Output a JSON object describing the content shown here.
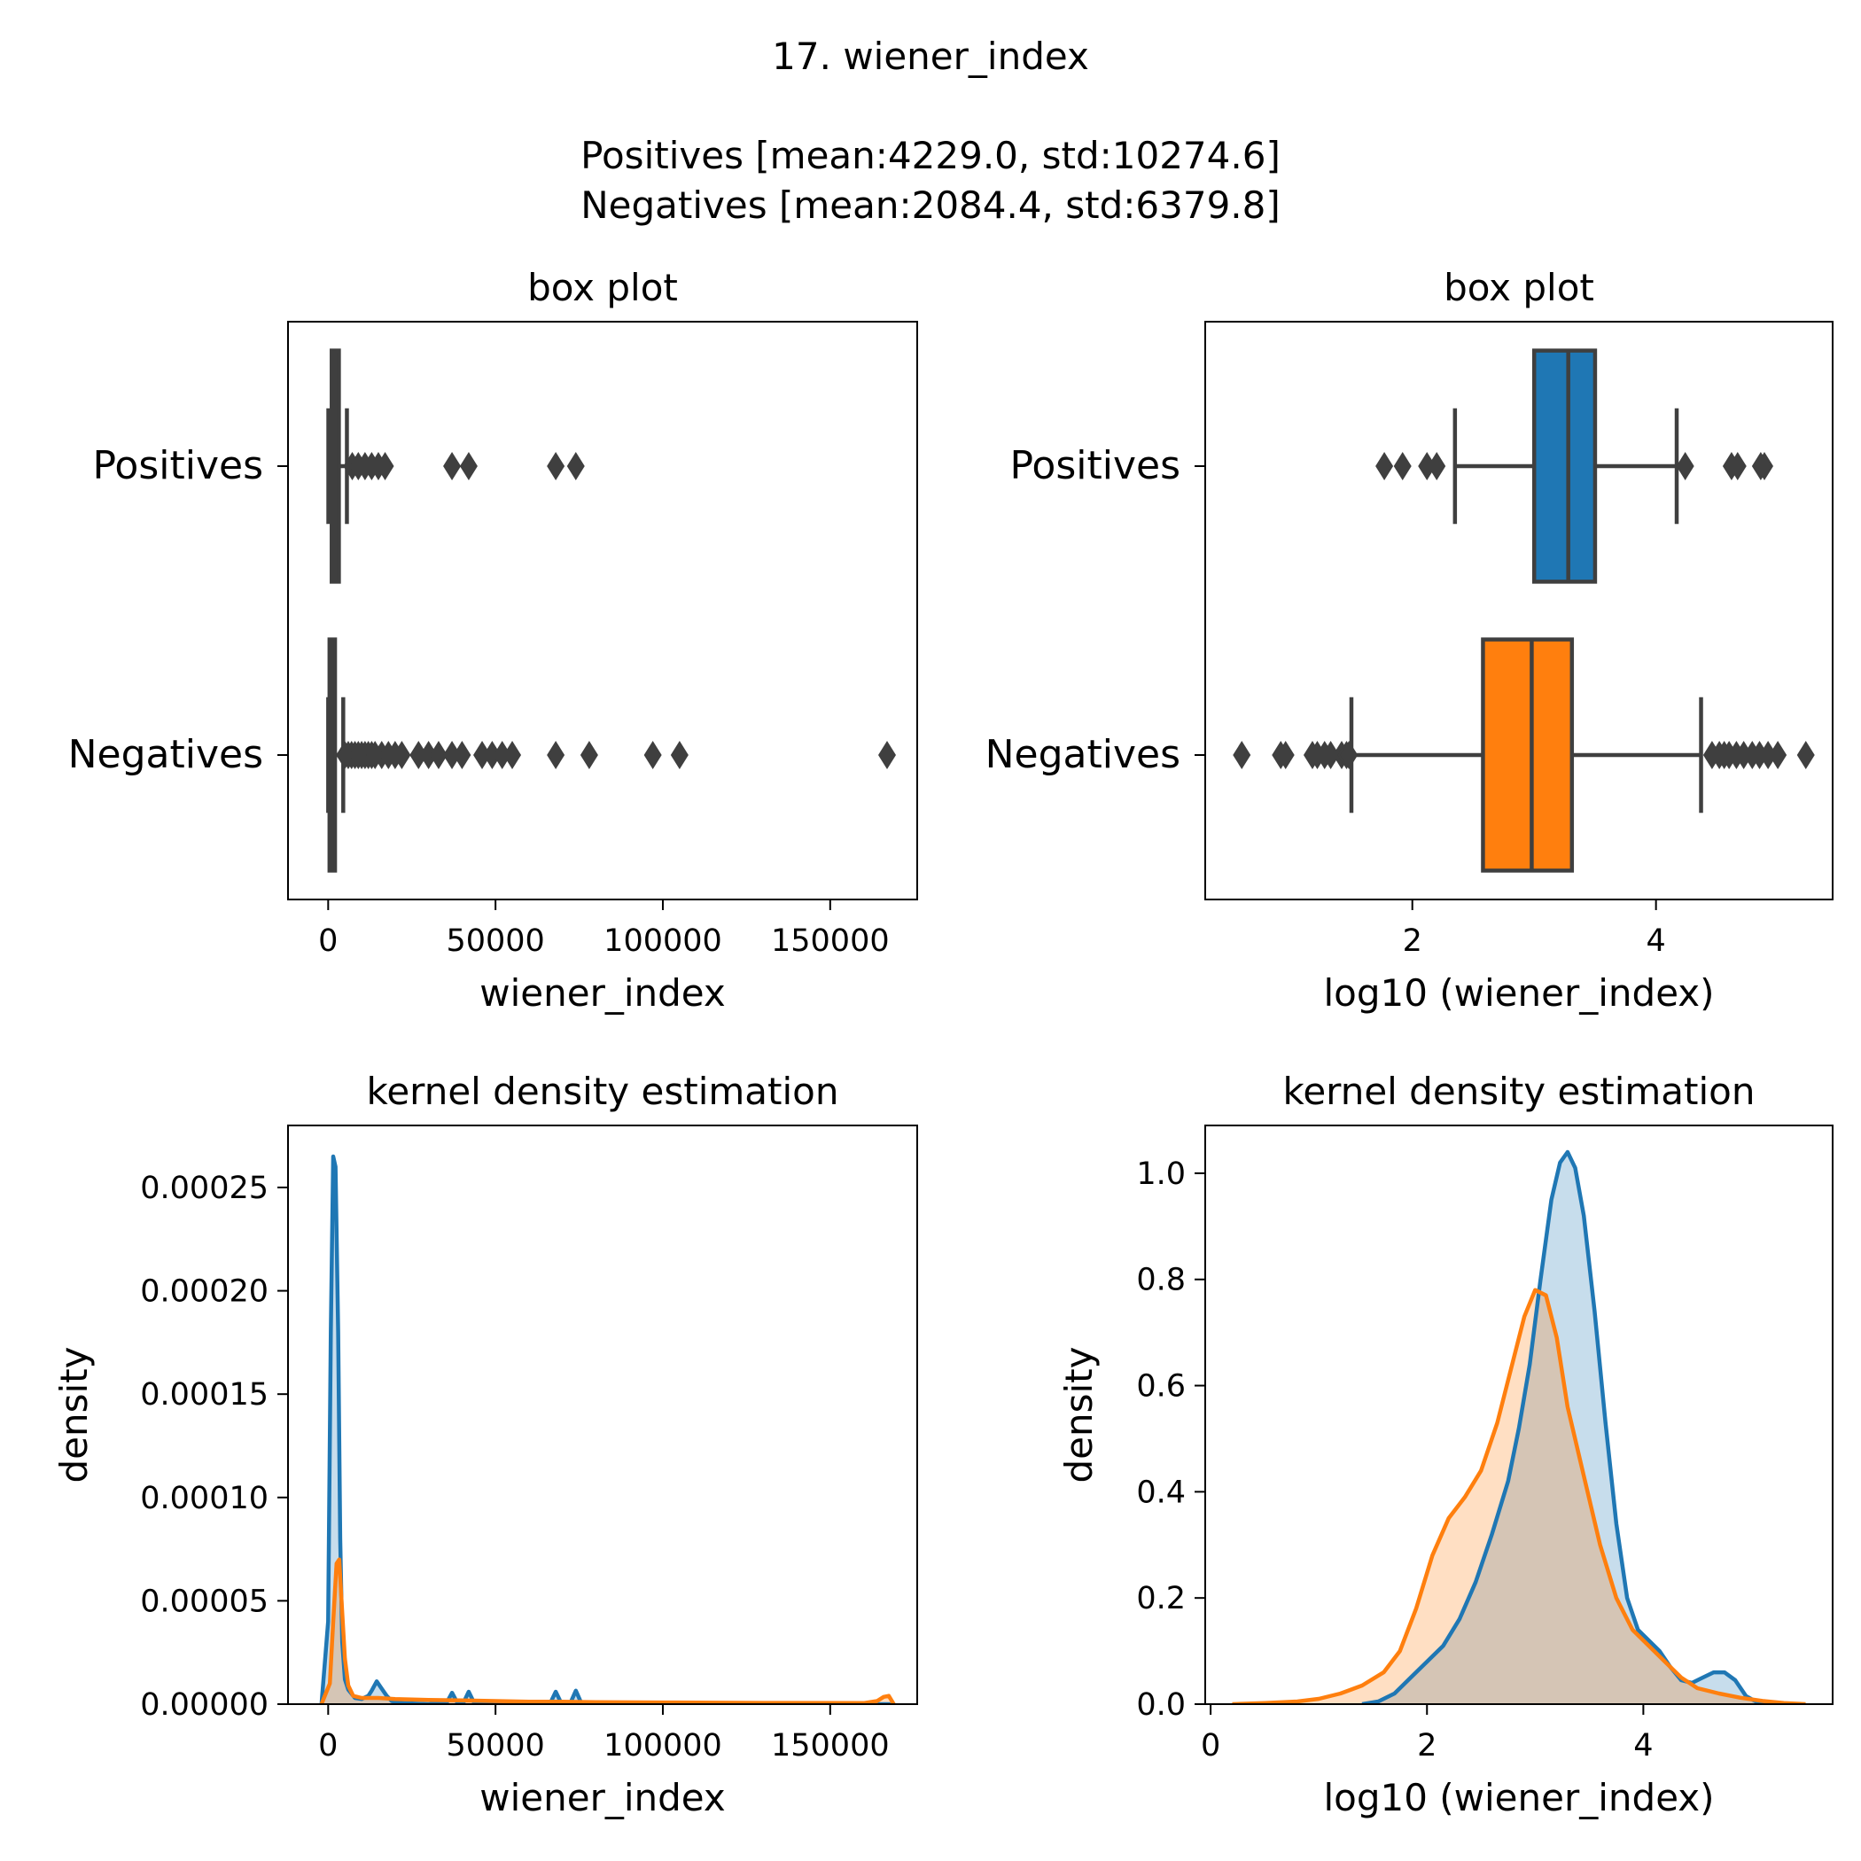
{
  "figure": {
    "title": "17.  wiener_index",
    "stats_positives": "Positives [mean:4229.0, std:10274.6]",
    "stats_negatives": "Negatives [mean:2084.4, std:6379.8]"
  },
  "colors": {
    "positives": "#1f77b4",
    "negatives": "#ff7f0e",
    "box_line": "#3f3f3f",
    "axis": "#000000"
  },
  "chart_data": [
    {
      "type": "box",
      "title": "box plot",
      "xlabel": "wiener_index",
      "ylabel": "",
      "xlim": [
        -12000,
        176000
      ],
      "xticks": [
        0,
        50000,
        100000,
        150000
      ],
      "xtick_labels": [
        "0",
        "50000",
        "100000",
        "150000"
      ],
      "categories": [
        "Positives",
        "Negatives"
      ],
      "series": [
        {
          "name": "Positives",
          "q1": 1050,
          "median": 1900,
          "q3": 3200,
          "whisker_low": 55,
          "whisker_high": 5600,
          "outliers": [
            7200,
            9000,
            11000,
            13000,
            15000,
            17000,
            37000,
            42000,
            68000,
            74000
          ]
        },
        {
          "name": "Negatives",
          "q1": 400,
          "median": 950,
          "q3": 2050,
          "whisker_low": 4,
          "whisker_high": 4500,
          "outliers": [
            5000,
            6000,
            7000,
            8000,
            9000,
            10000,
            11000,
            12000,
            13000,
            14000,
            16000,
            18000,
            20000,
            22000,
            27000,
            30000,
            33000,
            37000,
            40000,
            46000,
            49000,
            52000,
            55000,
            68000,
            78000,
            97000,
            105000,
            167000
          ]
        }
      ],
      "grid": false
    },
    {
      "type": "box",
      "title": "box plot",
      "xlabel": "log10 (wiener_index)",
      "ylabel": "",
      "xlim": [
        0.3,
        5.45
      ],
      "xticks": [
        2,
        4
      ],
      "xtick_labels": [
        "2",
        "4"
      ],
      "categories": [
        "Positives",
        "Negatives"
      ],
      "series": [
        {
          "name": "Positives",
          "q1": 3.0,
          "median": 3.28,
          "q3": 3.5,
          "whisker_low": 2.35,
          "whisker_high": 4.17,
          "outliers": [
            1.77,
            1.92,
            2.12,
            2.2,
            4.24,
            4.62,
            4.67,
            4.86,
            4.89
          ]
        },
        {
          "name": "Negatives",
          "q1": 2.58,
          "median": 2.98,
          "q3": 3.31,
          "whisker_low": 1.5,
          "whisker_high": 4.37,
          "outliers": [
            0.6,
            0.92,
            0.96,
            1.18,
            1.22,
            1.28,
            1.33,
            1.42,
            1.46,
            1.48,
            4.46,
            4.52,
            4.56,
            4.6,
            4.66,
            4.72,
            4.79,
            4.85,
            4.92,
            5.0,
            5.23
          ]
        }
      ],
      "grid": false
    },
    {
      "type": "area",
      "title": "kernel density estimation",
      "xlabel": "wiener_index",
      "ylabel": "density",
      "xlim": [
        -12000,
        176000
      ],
      "ylim": [
        0,
        0.00028
      ],
      "xticks": [
        0,
        50000,
        100000,
        150000
      ],
      "xtick_labels": [
        "0",
        "50000",
        "100000",
        "150000"
      ],
      "yticks": [
        0,
        5e-05,
        0.0001,
        0.00015,
        0.0002,
        0.00025
      ],
      "ytick_labels": [
        "0.00000",
        "0.00005",
        "0.00010",
        "0.00015",
        "0.00020",
        "0.00025"
      ],
      "series": [
        {
          "name": "Positives",
          "x": [
            -2000,
            0,
            800,
            1500,
            2200,
            3000,
            3600,
            4200,
            5000,
            6000,
            7000,
            8000,
            10000,
            12000,
            13000,
            14500,
            16000,
            17500,
            19000,
            22000,
            30000,
            35500,
            37000,
            38500,
            40500,
            42000,
            43500,
            46000,
            60000,
            66500,
            68000,
            69500,
            72500,
            74000,
            75500,
            80000,
            100000,
            140000,
            168000
          ],
          "y": [
            0,
            4e-05,
            0.00018,
            0.000265,
            0.00026,
            0.00018,
            8e-05,
            3e-05,
            1.2e-05,
            7e-06,
            5e-06,
            3e-06,
            2.5e-06,
            4e-06,
            6.5e-06,
            1.1e-05,
            7.5e-06,
            4e-06,
            1.5e-06,
            5e-07,
            0,
            1e-06,
            5.5e-06,
            1e-06,
            1e-06,
            6e-06,
            1e-06,
            0,
            0,
            1e-06,
            6e-06,
            1e-06,
            1e-06,
            6.5e-06,
            1e-06,
            0,
            0,
            0,
            0
          ]
        },
        {
          "name": "Negatives",
          "x": [
            -2000,
            -500,
            500,
            1500,
            2500,
            3300,
            4000,
            5000,
            6000,
            7500,
            10000,
            15000,
            20000,
            30000,
            40000,
            50000,
            60000,
            70000,
            80000,
            100000,
            130000,
            160000,
            164000,
            166000,
            167500,
            169000
          ],
          "y": [
            0,
            6e-06,
            1e-05,
            4e-05,
            6.8e-05,
            7e-05,
            5e-05,
            2.2e-05,
            9e-06,
            4e-06,
            3e-06,
            3e-06,
            2.5e-06,
            2e-06,
            1.8e-06,
            1.5e-06,
            1.2e-06,
            1.2e-06,
            1e-06,
            8e-07,
            6e-07,
            5e-07,
            1.5e-06,
            3.5e-06,
            4e-06,
            0
          ]
        }
      ],
      "grid": false
    },
    {
      "type": "area",
      "title": "kernel density estimation",
      "xlabel": "log10 (wiener_index)",
      "ylabel": "density",
      "xlim": [
        -0.05,
        5.75
      ],
      "ylim": [
        0,
        1.09
      ],
      "xticks": [
        0,
        2,
        4
      ],
      "xtick_labels": [
        "0",
        "2",
        "4"
      ],
      "yticks": [
        0,
        0.2,
        0.4,
        0.6,
        0.8,
        1.0
      ],
      "ytick_labels": [
        "0.0",
        "0.2",
        "0.4",
        "0.6",
        "0.8",
        "1.0"
      ],
      "series": [
        {
          "name": "Positives",
          "x": [
            1.4,
            1.55,
            1.7,
            1.85,
            2.0,
            2.15,
            2.3,
            2.45,
            2.6,
            2.75,
            2.85,
            2.95,
            3.05,
            3.15,
            3.23,
            3.3,
            3.37,
            3.45,
            3.55,
            3.65,
            3.75,
            3.85,
            3.95,
            4.05,
            4.15,
            4.25,
            4.35,
            4.45,
            4.55,
            4.65,
            4.75,
            4.85,
            4.95,
            5.05,
            5.2
          ],
          "y": [
            0,
            0.005,
            0.02,
            0.05,
            0.08,
            0.11,
            0.16,
            0.23,
            0.32,
            0.42,
            0.52,
            0.64,
            0.8,
            0.95,
            1.02,
            1.04,
            1.01,
            0.92,
            0.74,
            0.53,
            0.34,
            0.2,
            0.14,
            0.12,
            0.1,
            0.07,
            0.045,
            0.04,
            0.05,
            0.06,
            0.06,
            0.045,
            0.015,
            0.004,
            0
          ]
        },
        {
          "name": "Negatives",
          "x": [
            0.2,
            0.5,
            0.8,
            1.0,
            1.2,
            1.4,
            1.6,
            1.75,
            1.9,
            2.05,
            2.2,
            2.35,
            2.5,
            2.65,
            2.8,
            2.9,
            3.0,
            3.1,
            3.2,
            3.3,
            3.45,
            3.6,
            3.75,
            3.9,
            4.05,
            4.2,
            4.35,
            4.5,
            4.7,
            4.9,
            5.1,
            5.3,
            5.5
          ],
          "y": [
            0,
            0.002,
            0.005,
            0.01,
            0.02,
            0.035,
            0.06,
            0.1,
            0.18,
            0.28,
            0.35,
            0.39,
            0.44,
            0.53,
            0.65,
            0.73,
            0.78,
            0.77,
            0.69,
            0.56,
            0.43,
            0.3,
            0.2,
            0.14,
            0.11,
            0.08,
            0.05,
            0.03,
            0.02,
            0.012,
            0.006,
            0.002,
            0
          ]
        }
      ],
      "grid": false
    }
  ]
}
